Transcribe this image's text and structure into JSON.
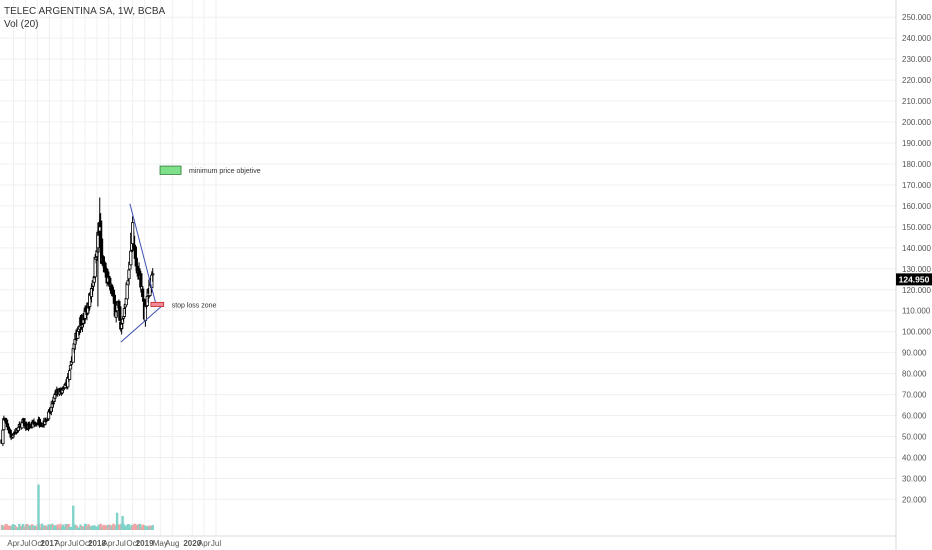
{
  "legend": {
    "title": "TELEC ARGENTINA SA, 1W, BCBA",
    "volume": "Vol (20)"
  },
  "colors": {
    "up": "#26a69a",
    "down": "#000000",
    "vol_up": "#7fd3c9",
    "vol_down": "#f3a3a3",
    "grid": "#eef0f3",
    "trend": "#3f51b5",
    "target_fill": "#7ee08a",
    "stop_fill": "#f08a98",
    "last_price_bg": "#000000"
  },
  "chart_data": {
    "type": "candlestick",
    "symbol": "TELEC ARGENTINA SA",
    "interval": "1W",
    "exchange": "BCBA",
    "last_price": "124.950",
    "x_tick_labels": [
      "Apr",
      "Jul",
      "Oct",
      "2017",
      "Apr",
      "Jul",
      "Oct",
      "2018",
      "Apr",
      "Jul",
      "Oct",
      "2019",
      "May",
      "Aug",
      "2020",
      "Apr",
      "Jul"
    ],
    "y_tick_labels": [
      "20.000",
      "30.000",
      "40.000",
      "50.000",
      "60.000",
      "70.000",
      "80.000",
      "90.000",
      "100.000",
      "110.000",
      "120.000",
      "130.000",
      "140.000",
      "150.000",
      "160.000",
      "170.000",
      "180.000",
      "190.000",
      "200.000",
      "210.000",
      "220.000",
      "230.000",
      "240.000",
      "250.000"
    ],
    "y_range": [
      14,
      252
    ],
    "price_anchors": [
      [
        "2016-01-04",
        48
      ],
      [
        "2016-01-18",
        58
      ],
      [
        "2016-02-15",
        55
      ],
      [
        "2016-03-14",
        50
      ],
      [
        "2016-04-11",
        52
      ],
      [
        "2016-05-09",
        54
      ],
      [
        "2016-06-13",
        57
      ],
      [
        "2016-07-11",
        54
      ],
      [
        "2016-08-08",
        55
      ],
      [
        "2016-09-12",
        56
      ],
      [
        "2016-10-10",
        57
      ],
      [
        "2016-11-07",
        56
      ],
      [
        "2016-12-05",
        58
      ],
      [
        "2017-01-09",
        62
      ],
      [
        "2017-02-06",
        68
      ],
      [
        "2017-03-06",
        72
      ],
      [
        "2017-04-03",
        70
      ],
      [
        "2017-05-01",
        74
      ],
      [
        "2017-05-29",
        78
      ],
      [
        "2017-06-19",
        84
      ],
      [
        "2017-07-03",
        92
      ],
      [
        "2017-07-24",
        97
      ],
      [
        "2017-08-21",
        105
      ],
      [
        "2017-09-18",
        106
      ],
      [
        "2017-10-16",
        110
      ],
      [
        "2017-11-13",
        118
      ],
      [
        "2017-12-11",
        128
      ],
      [
        "2017-12-25",
        138
      ],
      [
        "2018-01-08",
        145
      ],
      [
        "2018-01-22",
        150
      ],
      [
        "2018-02-05",
        134
      ],
      [
        "2018-02-26",
        130
      ],
      [
        "2018-03-19",
        125
      ],
      [
        "2018-04-09",
        122
      ],
      [
        "2018-04-30",
        118
      ],
      [
        "2018-05-21",
        110
      ],
      [
        "2018-06-11",
        113
      ],
      [
        "2018-07-02",
        100
      ],
      [
        "2018-07-23",
        108
      ],
      [
        "2018-08-13",
        118
      ],
      [
        "2018-09-03",
        128
      ],
      [
        "2018-09-24",
        148
      ],
      [
        "2018-10-08",
        140
      ],
      [
        "2018-10-29",
        130
      ],
      [
        "2018-11-19",
        128
      ],
      [
        "2018-12-10",
        122
      ],
      [
        "2018-12-31",
        108
      ],
      [
        "2019-01-21",
        118
      ],
      [
        "2019-02-11",
        122
      ],
      [
        "2019-03-04",
        125
      ]
    ],
    "spike_candles": [
      {
        "date": "2018-01-22",
        "open": 148,
        "high": 164,
        "low": 140,
        "close": 150
      },
      {
        "date": "2018-10-01",
        "open": 142,
        "high": 155,
        "low": 138,
        "close": 152
      },
      {
        "date": "2018-01-08",
        "open": 140,
        "high": 152,
        "low": 112,
        "close": 146
      }
    ],
    "volume_spikes": [
      [
        "2016-10-10",
        71
      ],
      [
        "2017-07-03",
        38
      ],
      [
        "2018-06-04",
        27
      ],
      [
        "2018-07-16",
        22
      ]
    ],
    "volume_range": [
      0,
      29
    ],
    "trendlines": [
      {
        "from": [
          "2018-09-10",
          161
        ],
        "to": [
          "2019-03-25",
          114
        ]
      },
      {
        "from": [
          "2018-07-02",
          95
        ],
        "to": [
          "2019-05-27",
          113
        ]
      }
    ],
    "zones": [
      {
        "label": "minimum price objetive",
        "x0": "2019-04-29",
        "x1": "2019-10-07",
        "y0": 175,
        "y1": 179
      },
      {
        "label": "stop loss zone",
        "x0": "2019-02-18",
        "x1": "2019-05-27",
        "y0": 112,
        "y1": 114
      }
    ]
  }
}
